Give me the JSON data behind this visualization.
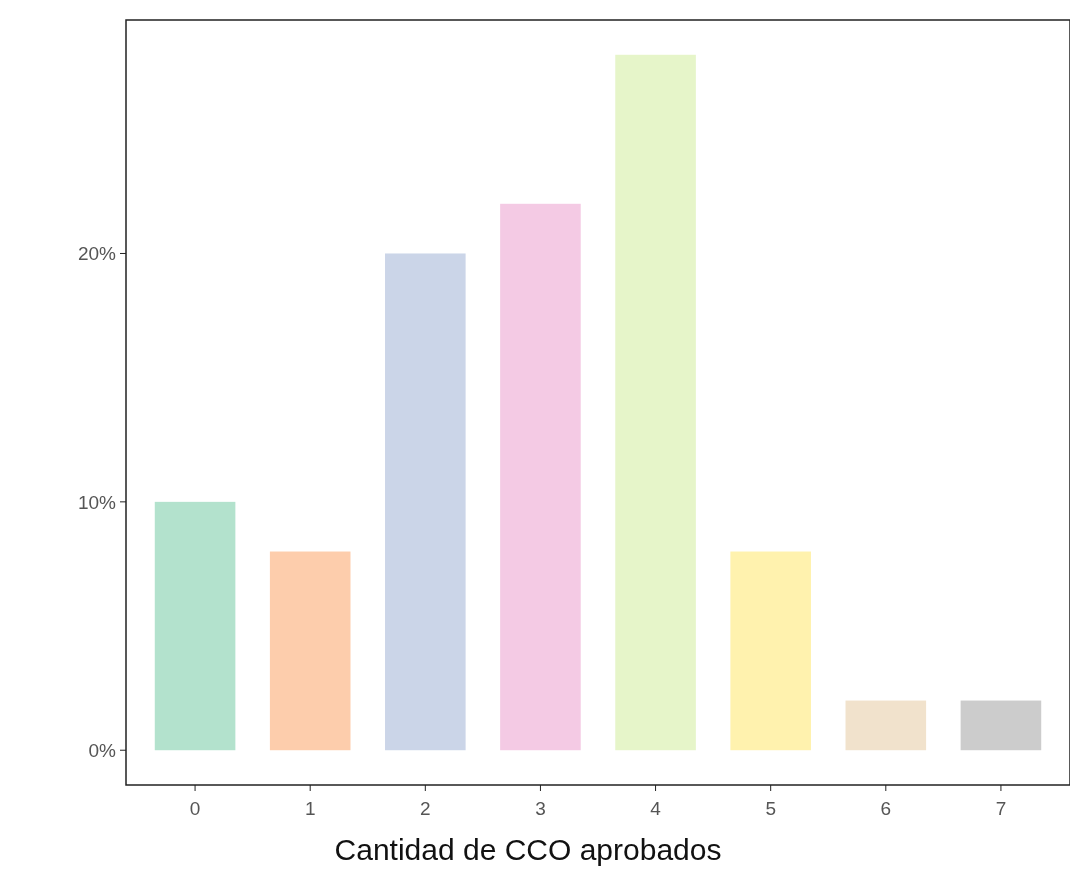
{
  "chart_data": {
    "type": "bar",
    "xlabel": "Cantidad de CCO aprobados",
    "categories": [
      "0",
      "1",
      "2",
      "3",
      "4",
      "5",
      "6",
      "7"
    ],
    "values": [
      10,
      8,
      20,
      22,
      28,
      8,
      2,
      2
    ],
    "colors": [
      "#b3e2cd",
      "#fdcdac",
      "#cbd5e8",
      "#f4cae4",
      "#e6f5c9",
      "#fff2ae",
      "#f1e2cc",
      "#cccccc"
    ],
    "ylim": [
      -1.4,
      29.4
    ],
    "yticks": [
      {
        "value": 0,
        "label": "0%"
      },
      {
        "value": 10,
        "label": "10%"
      },
      {
        "value": 20,
        "label": "20%"
      }
    ],
    "grid": false
  }
}
